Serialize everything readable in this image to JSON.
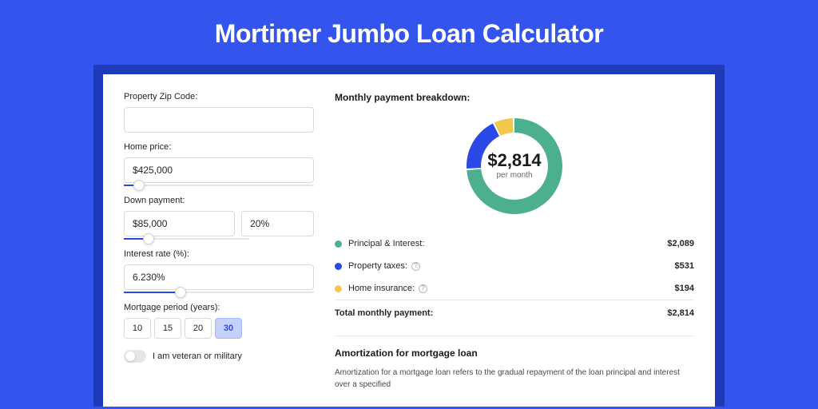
{
  "page": {
    "title": "Mortimer Jumbo Loan Calculator",
    "background_color": "#3355ee",
    "band_color": "#1f3ab8",
    "card_color": "#ffffff"
  },
  "form": {
    "zip": {
      "label": "Property Zip Code:",
      "value": ""
    },
    "home_price": {
      "label": "Home price:",
      "value": "$425,000",
      "slider_pct": 8
    },
    "down_payment": {
      "label": "Down payment:",
      "amount": "$85,000",
      "pct": "20%",
      "slider_pct": 20
    },
    "interest_rate": {
      "label": "Interest rate (%):",
      "value": "6.230%",
      "slider_pct": 30
    },
    "mortgage_period": {
      "label": "Mortgage period (years):",
      "options": [
        "10",
        "15",
        "20",
        "30"
      ],
      "selected": "30"
    },
    "veteran": {
      "label": "I am veteran or military",
      "checked": false
    }
  },
  "breakdown": {
    "title": "Monthly payment breakdown:",
    "donut": {
      "center_amount": "$2,814",
      "center_label": "per month",
      "radius_outer": 60,
      "radius_inner": 42,
      "slices": [
        {
          "label": "Principal & Interest",
          "color": "#4caf8f",
          "value": 2089,
          "pct": 74.2
        },
        {
          "label": "Property taxes",
          "color": "#2b49e6",
          "value": 531,
          "pct": 18.9
        },
        {
          "label": "Home insurance",
          "color": "#f2c94c",
          "value": 194,
          "pct": 6.9
        }
      ]
    },
    "rows": [
      {
        "dot_color": "#4caf8f",
        "label": "Principal & Interest:",
        "value": "$2,089",
        "has_info": false
      },
      {
        "dot_color": "#2b49e6",
        "label": "Property taxes:",
        "value": "$531",
        "has_info": true
      },
      {
        "dot_color": "#f2c94c",
        "label": "Home insurance:",
        "value": "$194",
        "has_info": true
      }
    ],
    "total": {
      "label": "Total monthly payment:",
      "value": "$2,814"
    }
  },
  "amortization": {
    "title": "Amortization for mortgage loan",
    "text": "Amortization for a mortgage loan refers to the gradual repayment of the loan principal and interest over a specified"
  }
}
